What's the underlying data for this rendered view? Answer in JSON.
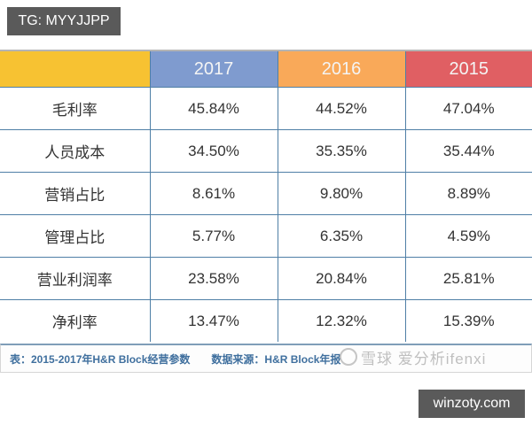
{
  "overlay": {
    "top_badge": "TG: MYYJJPP",
    "bottom_badge": "winzoty.com"
  },
  "colors": {
    "corner_header": "#f7c232",
    "col_2017": "#7f9bcf",
    "col_2016": "#f9a959",
    "col_2015": "#e05f63",
    "grid_line": "#4f7fa6",
    "caption_text": "#3f6f9e"
  },
  "table": {
    "headers": [
      "",
      "2017",
      "2016",
      "2015"
    ],
    "rows": [
      {
        "label": "毛利率",
        "values": [
          "45.84%",
          "44.52%",
          "47.04%"
        ]
      },
      {
        "label": "人员成本",
        "values": [
          "34.50%",
          "35.35%",
          "35.44%"
        ]
      },
      {
        "label": "营销占比",
        "values": [
          "8.61%",
          "9.80%",
          "8.89%"
        ]
      },
      {
        "label": "管理占比",
        "values": [
          "5.77%",
          "6.35%",
          "4.59%"
        ]
      },
      {
        "label": "营业利润率",
        "values": [
          "23.58%",
          "20.84%",
          "25.81%"
        ]
      },
      {
        "label": "净利率",
        "values": [
          "13.47%",
          "12.32%",
          "15.39%"
        ]
      }
    ]
  },
  "caption": {
    "title": "表：2015-2017年H&R Block经营参数",
    "source": "数据来源：H&R Block年报"
  },
  "watermark": {
    "text": "雪球 爱分析ifenxi"
  }
}
